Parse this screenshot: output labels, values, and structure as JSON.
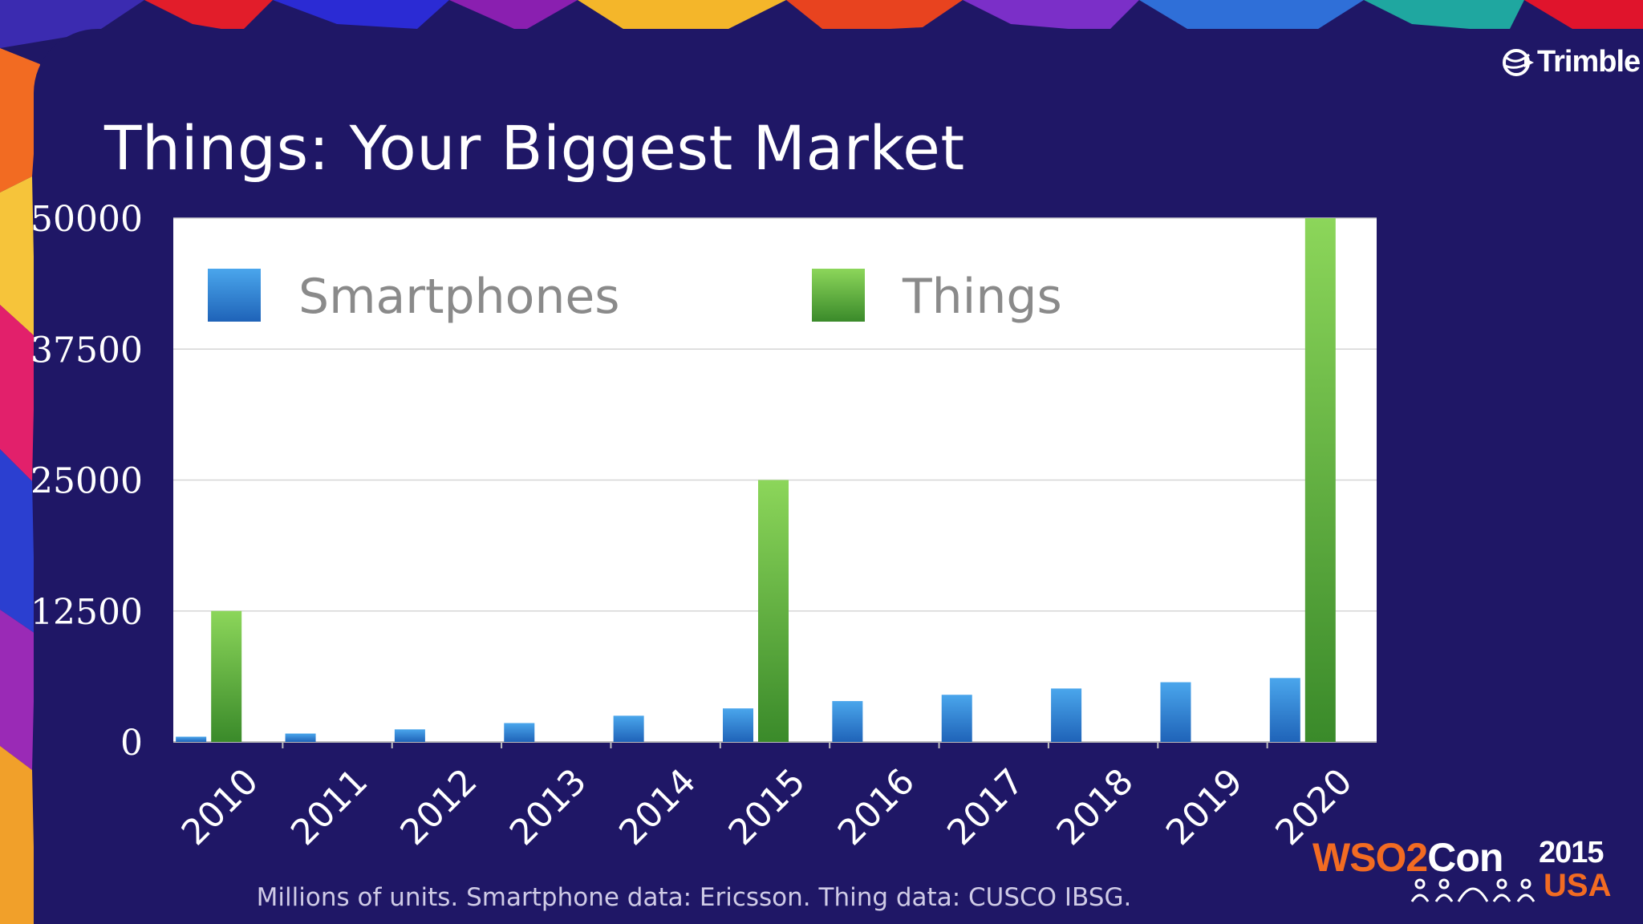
{
  "slide": {
    "title": "Things: Your Biggest Market",
    "logo_name": "Trimble",
    "footnote": "Millions of units.  Smartphone data: Ericsson.  Thing data: CUSCO IBSG.",
    "event": {
      "name_orange": "WSO2",
      "name_white": "Con",
      "year": "2015",
      "location": "USA"
    },
    "colors": {
      "background": "#1f1766",
      "accent_orange": "#f26b22"
    }
  },
  "chart_data": {
    "type": "bar",
    "title": "",
    "xlabel": "",
    "ylabel": "",
    "categories": [
      "2010",
      "2011",
      "2012",
      "2013",
      "2014",
      "2015",
      "2016",
      "2017",
      "2018",
      "2019",
      "2020"
    ],
    "series": [
      {
        "name": "Smartphones",
        "color": "#3a8fdc",
        "values": [
          500,
          800,
          1200,
          1800,
          2500,
          3200,
          3900,
          4500,
          5100,
          5700,
          6100
        ]
      },
      {
        "name": "Things",
        "color": "#56b540",
        "values": [
          12500,
          0,
          0,
          0,
          0,
          25000,
          0,
          0,
          0,
          0,
          50000
        ]
      }
    ],
    "ylim": [
      0,
      50000
    ],
    "yticks": [
      "0",
      "12500",
      "25000",
      "37500",
      "50000"
    ],
    "grid": true,
    "legend_position": "top"
  }
}
